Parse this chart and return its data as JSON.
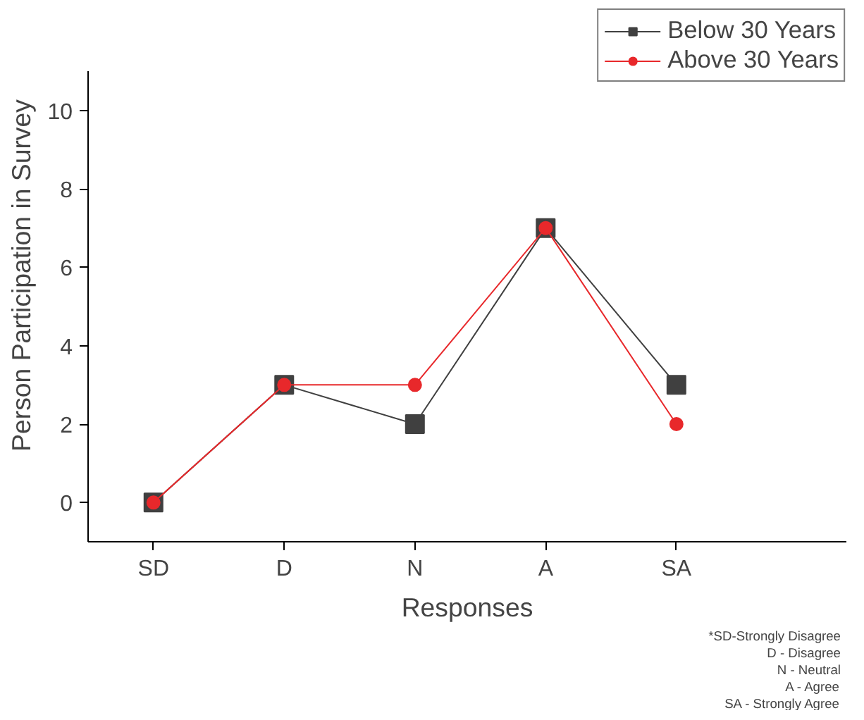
{
  "chart_data": {
    "type": "line",
    "xlabel": "Responses",
    "ylabel": "Person Participation in Survey",
    "categories": [
      "SD",
      "D",
      "N",
      "A",
      "SA"
    ],
    "series": [
      {
        "name": "Below 30 Years",
        "color": "#404040",
        "values": [
          0,
          3,
          2,
          7,
          3
        ],
        "marker": "square"
      },
      {
        "name": "Above 30 Years",
        "color": "#e8282b",
        "values": [
          0,
          3,
          3,
          7,
          2
        ],
        "marker": "circle"
      }
    ],
    "ylim": [
      -1,
      11
    ],
    "yticks": [
      0,
      2,
      4,
      6,
      8,
      10
    ],
    "grid": false,
    "legend": "top right",
    "annotations": [
      "*SD-Strongly Disagree",
      "D - Disagree",
      "N - Neutral",
      "A - Agree",
      "SA - Strongly Agree"
    ]
  }
}
